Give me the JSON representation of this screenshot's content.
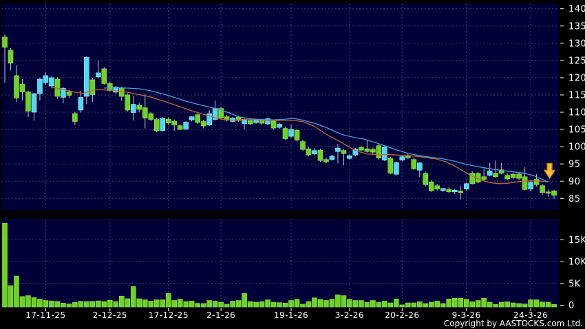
{
  "footer": {
    "copyright": "Copyright by AASTOCKS.com Ltd."
  },
  "colors": {
    "background": "#000000",
    "pane": "#000038",
    "grid": "#41417d",
    "up_candle": "#4ED9F2",
    "up_candle_edge": "#9FF0FF",
    "down_candle": "#6CD41F",
    "down_candle_edge": "#9BE455",
    "wick": "#C4C4D4",
    "ma_short": "#C06A35",
    "ma_long": "#4C9FD8",
    "volume_bar": "#6CD41F",
    "volume_bar_edge": "#9BE455",
    "axis_text": "#FFFFFF",
    "arrow_fill": "#F3BC35",
    "arrow_edge": "#B97B15"
  },
  "chart_data": {
    "type": "candlestick",
    "title": "",
    "legend_position": "none",
    "grid": "dashed",
    "price_axis": {
      "side": "right",
      "ticks": [
        140,
        135,
        130,
        125,
        120,
        115,
        110,
        105,
        100,
        95,
        90,
        85
      ],
      "min": 84,
      "max": 141.5
    },
    "volume_axis": {
      "side": "right",
      "unit": "thousands",
      "ticks": [
        {
          "label": "15K",
          "value": 15
        },
        {
          "label": "10K",
          "value": 10
        },
        {
          "label": "5K",
          "value": 5
        },
        {
          "label": "0",
          "value": 0
        }
      ],
      "max": 19.8
    },
    "date_ticks": [
      {
        "label": "17-11-25",
        "i": 7
      },
      {
        "label": "2-12-25",
        "i": 18
      },
      {
        "label": "17-12-25",
        "i": 28
      },
      {
        "label": "2-1-26",
        "i": 37
      },
      {
        "label": "19-1-26",
        "i": 49
      },
      {
        "label": "3-2-26",
        "i": 59
      },
      {
        "label": "20-2-26",
        "i": 68
      },
      {
        "label": "9-3-26",
        "i": 79
      },
      {
        "label": "24-3-26",
        "i": 90
      }
    ],
    "candles_ohlc": [
      [
        131.8,
        132.5,
        118.5,
        128.8
      ],
      [
        128.0,
        128.6,
        122.2,
        124.2
      ],
      [
        120.6,
        123.6,
        113.0,
        114.1
      ],
      [
        118.1,
        119.6,
        113.4,
        115.9
      ],
      [
        115.9,
        116.3,
        108.6,
        110.3
      ],
      [
        110.0,
        115.6,
        107.5,
        115.4
      ],
      [
        115.4,
        119.9,
        113.4,
        119.6
      ],
      [
        118.6,
        121.6,
        117.9,
        120.6
      ],
      [
        117.6,
        120.4,
        116.9,
        120.0
      ],
      [
        119.6,
        120.1,
        113.9,
        114.6
      ],
      [
        114.3,
        117.3,
        112.6,
        116.9
      ],
      [
        115.9,
        116.5,
        114.2,
        114.9
      ],
      [
        109.6,
        110.1,
        106.3,
        107.3
      ],
      [
        110.6,
        116.1,
        109.9,
        114.3
      ],
      [
        114.6,
        126.2,
        112.3,
        125.9
      ],
      [
        119.4,
        120.0,
        113.0,
        115.1
      ],
      [
        120.2,
        125.0,
        119.8,
        121.4
      ],
      [
        122.6,
        123.1,
        118.0,
        118.3
      ],
      [
        118.3,
        118.9,
        115.9,
        116.3
      ],
      [
        115.8,
        117.6,
        115.3,
        117.3
      ],
      [
        116.9,
        117.4,
        113.3,
        114.6
      ],
      [
        115.0,
        115.5,
        110.2,
        110.6
      ],
      [
        109.9,
        114.6,
        107.6,
        112.3
      ],
      [
        112.0,
        112.6,
        110.0,
        110.8
      ],
      [
        111.3,
        115.3,
        105.3,
        108.3
      ],
      [
        109.6,
        110.0,
        107.4,
        107.9
      ],
      [
        107.9,
        108.4,
        104.2,
        104.6
      ],
      [
        104.7,
        108.6,
        104.3,
        108.3
      ],
      [
        108.0,
        108.6,
        106.4,
        106.9
      ],
      [
        107.4,
        107.9,
        104.6,
        106.3
      ],
      [
        106.1,
        106.6,
        104.8,
        105.0
      ],
      [
        105.1,
        107.4,
        104.8,
        107.1
      ],
      [
        107.8,
        109.0,
        107.3,
        108.7
      ],
      [
        109.3,
        109.7,
        106.6,
        107.0
      ],
      [
        107.3,
        107.8,
        105.3,
        106.0
      ],
      [
        106.3,
        110.6,
        106.0,
        109.6
      ],
      [
        107.9,
        113.4,
        107.6,
        111.1
      ],
      [
        111.1,
        111.5,
        108.0,
        108.4
      ],
      [
        108.7,
        109.2,
        107.3,
        107.7
      ],
      [
        107.3,
        108.6,
        107.0,
        108.3
      ],
      [
        108.6,
        109.0,
        107.2,
        107.6
      ],
      [
        106.7,
        108.2,
        105.0,
        107.9
      ],
      [
        107.6,
        108.0,
        106.2,
        106.6
      ],
      [
        107.0,
        108.1,
        106.6,
        107.8
      ],
      [
        107.6,
        108.0,
        106.4,
        106.8
      ],
      [
        106.6,
        108.4,
        106.2,
        108.1
      ],
      [
        107.4,
        107.8,
        105.0,
        105.4
      ],
      [
        105.6,
        107.0,
        105.2,
        106.5
      ],
      [
        105.3,
        105.8,
        101.9,
        102.3
      ],
      [
        103.0,
        106.4,
        102.6,
        105.0
      ],
      [
        104.8,
        105.2,
        101.5,
        101.9
      ],
      [
        101.5,
        102.0,
        98.8,
        99.2
      ],
      [
        99.4,
        100.0,
        97.2,
        97.6
      ],
      [
        97.9,
        99.6,
        97.5,
        98.9
      ],
      [
        99.0,
        99.4,
        95.6,
        96.0
      ],
      [
        96.3,
        96.8,
        95.2,
        95.6
      ],
      [
        96.3,
        97.7,
        95.9,
        97.3
      ],
      [
        98.6,
        100.8,
        95.2,
        99.6
      ],
      [
        98.9,
        99.4,
        94.6,
        98.0
      ],
      [
        96.6,
        97.8,
        96.2,
        97.4
      ],
      [
        97.6,
        99.7,
        97.2,
        99.3
      ],
      [
        99.8,
        100.2,
        98.7,
        99.0
      ],
      [
        99.4,
        102.0,
        98.3,
        98.6
      ],
      [
        99.2,
        99.7,
        97.9,
        98.4
      ],
      [
        100.3,
        100.8,
        96.2,
        96.7
      ],
      [
        96.1,
        100.2,
        95.8,
        99.9
      ],
      [
        96.6,
        97.1,
        92.0,
        92.3
      ],
      [
        92.0,
        95.7,
        91.7,
        95.4
      ],
      [
        96.1,
        97.5,
        95.8,
        97.1
      ],
      [
        97.5,
        97.9,
        96.4,
        96.8
      ],
      [
        96.3,
        96.8,
        93.2,
        93.6
      ],
      [
        93.2,
        95.5,
        91.3,
        95.3
      ],
      [
        92.3,
        92.8,
        88.5,
        89.0
      ],
      [
        89.8,
        90.3,
        86.9,
        87.2
      ],
      [
        88.7,
        89.2,
        87.3,
        87.7
      ],
      [
        87.3,
        88.0,
        86.9,
        87.9
      ],
      [
        87.6,
        88.3,
        86.5,
        86.9
      ],
      [
        86.9,
        87.8,
        86.2,
        87.4
      ],
      [
        87.2,
        88.7,
        84.7,
        86.7
      ],
      [
        87.7,
        89.6,
        87.3,
        89.3
      ],
      [
        92.3,
        92.9,
        89.0,
        89.3
      ],
      [
        92.3,
        92.7,
        89.4,
        89.7
      ],
      [
        91.3,
        93.6,
        90.2,
        90.5
      ],
      [
        91.7,
        95.3,
        91.4,
        93.0
      ],
      [
        92.3,
        96.0,
        91.0,
        91.3
      ],
      [
        93.3,
        95.3,
        92.0,
        92.3
      ],
      [
        91.7,
        92.2,
        90.4,
        90.7
      ],
      [
        92.0,
        92.5,
        90.5,
        91.0
      ],
      [
        92.1,
        92.6,
        90.4,
        90.8
      ],
      [
        91.3,
        94.0,
        87.3,
        87.6
      ],
      [
        87.7,
        90.0,
        87.0,
        89.7
      ],
      [
        90.6,
        92.0,
        88.5,
        89.0
      ],
      [
        88.7,
        89.2,
        86.0,
        86.7
      ],
      [
        86.9,
        87.6,
        85.4,
        86.5
      ],
      [
        87.2,
        87.5,
        84.9,
        85.9
      ]
    ],
    "volumes_k": [
      18.8,
      4.5,
      6.7,
      2.0,
      2.2,
      1.75,
      1.4,
      1.1,
      1.0,
      0.9,
      0.5,
      0.3,
      0.65,
      0.9,
      0.85,
      0.9,
      1.0,
      0.85,
      1.15,
      0.85,
      2.1,
      1.5,
      4.3,
      1.5,
      1.25,
      0.95,
      1.25,
      1.25,
      2.7,
      1.1,
      1.4,
      0.85,
      0.95,
      0.45,
      0.4,
      1.1,
      0.95,
      0.7,
      0.25,
      0.95,
      1.1,
      2.7,
      0.85,
      0.7,
      0.85,
      1.25,
      0.7,
      0.6,
      0.5,
      1.1,
      1.35,
      0.25,
      0.85,
      1.7,
      1.35,
      1.1,
      1.4,
      2.4,
      2.2,
      1.35,
      1.1,
      1.1,
      0.65,
      1.1,
      0.7,
      0.95,
      0.55,
      1.45,
      0.1,
      0.55,
      0.55,
      0.8,
      0.4,
      0.7,
      0.95,
      0.4,
      1.45,
      1.6,
      1.6,
      1.35,
      0.8,
      1.1,
      1.6,
      0.7,
      0.2,
      0.7,
      0.8,
      0.55,
      0.4,
      0.3,
      1.25,
      1.25,
      0.75,
      0.7,
      0.2
    ],
    "ma_short_points": [
      [
        8,
        117.3
      ],
      [
        10,
        116.6
      ],
      [
        12,
        115.8
      ],
      [
        13.5,
        115.5
      ],
      [
        15,
        116.3
      ],
      [
        16,
        116.6
      ],
      [
        17.5,
        116.4
      ],
      [
        19,
        116.2
      ],
      [
        21,
        115.8
      ],
      [
        23,
        115.1
      ],
      [
        25,
        114.4
      ],
      [
        27,
        113.3
      ],
      [
        29,
        112.2
      ],
      [
        30.5,
        111.3
      ],
      [
        32,
        110.4
      ],
      [
        34,
        109.4
      ],
      [
        36,
        108.4
      ],
      [
        37,
        108.0
      ],
      [
        39,
        107.7
      ],
      [
        41,
        107.9
      ],
      [
        43,
        107.8
      ],
      [
        45,
        107.6
      ],
      [
        47,
        107.6
      ],
      [
        49,
        107.7
      ],
      [
        51,
        107.3
      ],
      [
        53,
        105.9
      ],
      [
        55,
        103.6
      ],
      [
        57,
        101.8
      ],
      [
        58.5,
        100.3
      ],
      [
        60,
        98.9
      ],
      [
        62,
        97.9
      ],
      [
        64,
        97.7
      ],
      [
        66,
        97.7
      ],
      [
        68,
        97.5
      ],
      [
        70,
        97.3
      ],
      [
        72,
        96.9
      ],
      [
        74,
        96.4
      ],
      [
        75.5,
        95.6
      ],
      [
        77,
        94.4
      ],
      [
        78.5,
        92.9
      ],
      [
        80,
        91.4
      ],
      [
        81.5,
        90.3
      ],
      [
        83,
        89.6
      ],
      [
        84.5,
        89.3
      ],
      [
        86,
        89.4
      ],
      [
        88,
        89.9
      ],
      [
        90,
        90.1
      ],
      [
        92,
        90.0
      ],
      [
        93,
        89.8
      ]
    ],
    "ma_long_points": [
      [
        17,
        117.0
      ],
      [
        19,
        117.1
      ],
      [
        21,
        117.0
      ],
      [
        23,
        116.8
      ],
      [
        24.5,
        116.4
      ],
      [
        26,
        115.8
      ],
      [
        27.5,
        115.1
      ],
      [
        29,
        114.3
      ],
      [
        31,
        113.2
      ],
      [
        33,
        112.3
      ],
      [
        34.5,
        111.7
      ],
      [
        36,
        111.1
      ],
      [
        37,
        110.7
      ],
      [
        38.5,
        109.7
      ],
      [
        40,
        108.7
      ],
      [
        42,
        108.1
      ],
      [
        44,
        107.9
      ],
      [
        46,
        107.8
      ],
      [
        48,
        108.0
      ],
      [
        49.5,
        108.2
      ],
      [
        51,
        107.7
      ],
      [
        53,
        106.8
      ],
      [
        55,
        105.6
      ],
      [
        56.5,
        104.4
      ],
      [
        58,
        103.4
      ],
      [
        60,
        102.6
      ],
      [
        61.5,
        102.2
      ],
      [
        63,
        101.4
      ],
      [
        65,
        100.3
      ],
      [
        67,
        99.1
      ],
      [
        69,
        98.1
      ],
      [
        71,
        97.4
      ],
      [
        73,
        96.9
      ],
      [
        75,
        96.5
      ],
      [
        77,
        95.8
      ],
      [
        79,
        94.9
      ],
      [
        81,
        94.2
      ],
      [
        83,
        93.6
      ],
      [
        85,
        93.1
      ],
      [
        87,
        92.7
      ],
      [
        89,
        92.3
      ],
      [
        90.5,
        91.6
      ],
      [
        92,
        90.5
      ],
      [
        93,
        89.8
      ]
    ],
    "annotation": {
      "type": "down-arrow",
      "i": 93,
      "tip_price": 90.8
    }
  }
}
